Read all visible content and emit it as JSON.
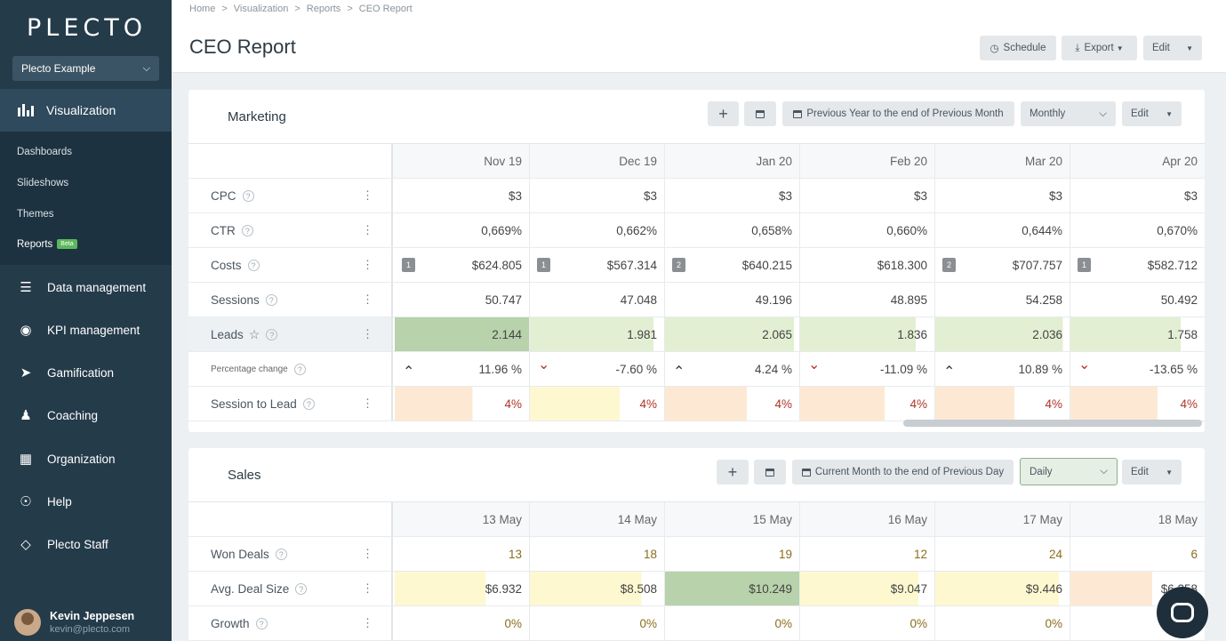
{
  "app": {
    "logo": "PLECTO",
    "org": "Plecto Example"
  },
  "sidebar": {
    "main_active": "Visualization",
    "sub_items": [
      "Dashboards",
      "Slideshows",
      "Themes",
      "Reports"
    ],
    "beta_label": "Beta",
    "items": [
      "Data management",
      "KPI management",
      "Gamification",
      "Coaching",
      "Organization",
      "Help",
      "Plecto Staff"
    ],
    "user": {
      "name": "Kevin Jeppesen",
      "email": "kevin@plecto.com"
    }
  },
  "header": {
    "breadcrumb": [
      "Home",
      "Visualization",
      "Reports",
      "CEO Report"
    ],
    "title": "CEO Report",
    "schedule_label": "Schedule",
    "export_label": "Export",
    "edit_label": "Edit"
  },
  "marketing": {
    "title": "Marketing",
    "period_label": "Previous Year to the end of Previous Month",
    "interval": "Monthly",
    "edit_label": "Edit",
    "columns": [
      "Nov 19",
      "Dec 19",
      "Jan 20",
      "Feb 20",
      "Mar 20",
      "Apr 20"
    ],
    "rows": [
      {
        "label": "CPC",
        "values": [
          "$3",
          "$3",
          "$3",
          "$3",
          "$3",
          "$3"
        ]
      },
      {
        "label": "CTR",
        "values": [
          "0,669%",
          "0,662%",
          "0,658%",
          "0,660%",
          "0,644%",
          "0,670%"
        ]
      },
      {
        "label": "Costs",
        "badges": [
          "1",
          "1",
          "2",
          "",
          "2",
          "1"
        ],
        "values": [
          "$624.805",
          "$567.314",
          "$640.215",
          "$618.300",
          "$707.757",
          "$582.712"
        ]
      },
      {
        "label": "Sessions",
        "values": [
          "50.747",
          "47.048",
          "49.196",
          "48.895",
          "54.258",
          "50.492"
        ]
      },
      {
        "label": "Leads",
        "values": [
          "2.144",
          "1.981",
          "2.065",
          "1.836",
          "2.036",
          "1.758"
        ],
        "fills": [
          1.0,
          0.92,
          0.96,
          0.86,
          0.95,
          0.82
        ]
      },
      {
        "label": "Percentage change",
        "values": [
          "11.96 %",
          "-7.60 %",
          "4.24 %",
          "-11.09 %",
          "10.89 %",
          "-13.65 %"
        ],
        "dirs": [
          "up",
          "down",
          "up",
          "down",
          "up",
          "down"
        ]
      },
      {
        "label": "Session to Lead",
        "values": [
          "4%",
          "4%",
          "4%",
          "4%",
          "4%",
          "4%"
        ],
        "fills": [
          0.58,
          0.67,
          0.61,
          0.63,
          0.59,
          0.65
        ]
      }
    ]
  },
  "sales": {
    "title": "Sales",
    "period_label": "Current Month to the end of Previous Day",
    "interval": "Daily",
    "edit_label": "Edit",
    "columns": [
      "13 May",
      "14 May",
      "15 May",
      "16 May",
      "17 May",
      "18 May"
    ],
    "rows": [
      {
        "label": "Won Deals",
        "values": [
          "13",
          "18",
          "19",
          "12",
          "24",
          "6"
        ]
      },
      {
        "label": "Avg. Deal Size",
        "values": [
          "$6.932",
          "$8.508",
          "$10.249",
          "$9.047",
          "$9.446",
          "$6.258"
        ],
        "fills": [
          0.68,
          0.83,
          1.0,
          0.88,
          0.92,
          0.61
        ]
      },
      {
        "label": "Growth",
        "values": [
          "0%",
          "0%",
          "0%",
          "0%",
          "0%",
          "0%"
        ]
      }
    ]
  },
  "colors": {
    "sidebar": "#243b4a",
    "green_high": "#b8d2ab",
    "green_mid": "#e3efd2",
    "yellow": "#fdf8d0",
    "peach": "#fde9d3",
    "down_arrow": "#b0342a"
  }
}
